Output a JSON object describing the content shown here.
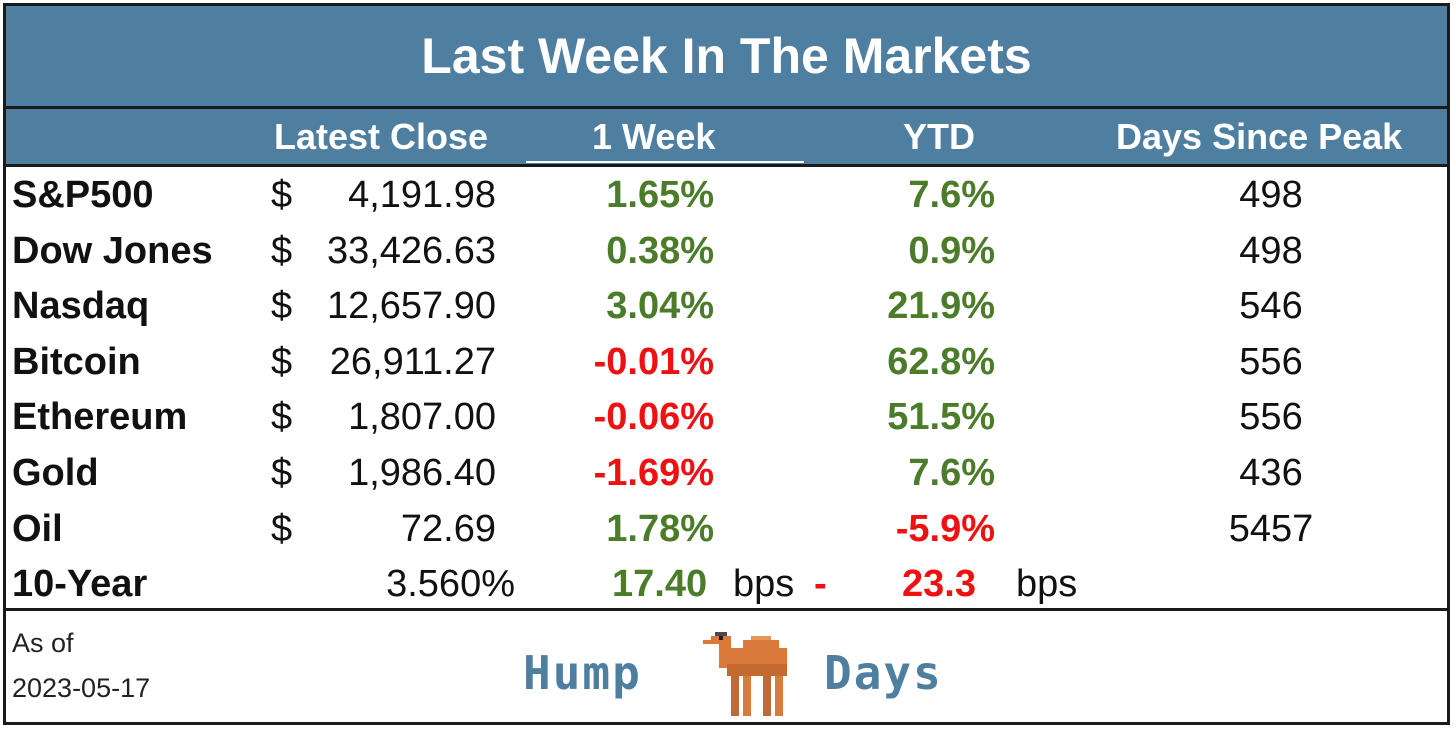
{
  "title": "Last Week In The Markets",
  "headers": {
    "latest_close": "Latest Close",
    "week": "1 Week",
    "ytd": "YTD",
    "days_since_peak": "Days Since Peak"
  },
  "rows": [
    {
      "name": "S&P500",
      "dollar": "$",
      "close": "4,191.98",
      "week": "1.65%",
      "ytd": "7.6%",
      "days": "498"
    },
    {
      "name": "Dow Jones",
      "dollar": "$",
      "close": "33,426.63",
      "week": "0.38%",
      "ytd": "0.9%",
      "days": "498"
    },
    {
      "name": "Nasdaq",
      "dollar": "$",
      "close": "12,657.90",
      "week": "3.04%",
      "ytd": "21.9%",
      "days": "546"
    },
    {
      "name": "Bitcoin",
      "dollar": "$",
      "close": "26,911.27",
      "week": "-0.01%",
      "ytd": "62.8%",
      "days": "556"
    },
    {
      "name": "Ethereum",
      "dollar": "$",
      "close": "1,807.00",
      "week": "-0.06%",
      "ytd": "51.5%",
      "days": "556"
    },
    {
      "name": "Gold",
      "dollar": "$",
      "close": "1,986.40",
      "week": "-1.69%",
      "ytd": "7.6%",
      "days": "436"
    },
    {
      "name": "Oil",
      "dollar": "$",
      "close": "72.69",
      "week": "1.78%",
      "ytd": "-5.9%",
      "days": "5457"
    }
  ],
  "ten_year": {
    "name": "10-Year",
    "yield": "3.560%",
    "week_value": "17.40",
    "week_unit": "bps",
    "ytd_sign": "-",
    "ytd_value": "23.3",
    "ytd_unit": "bps"
  },
  "footer": {
    "as_of_label": "As of",
    "date": "2023-05-17",
    "logo_left": "Hump",
    "logo_right": "Days"
  },
  "colors": {
    "header_bg": "#4f7fa0",
    "positive": "#4a7c2a",
    "negative": "#ee1111",
    "logo": "#4f7fa0",
    "camel": "#d9793c"
  }
}
